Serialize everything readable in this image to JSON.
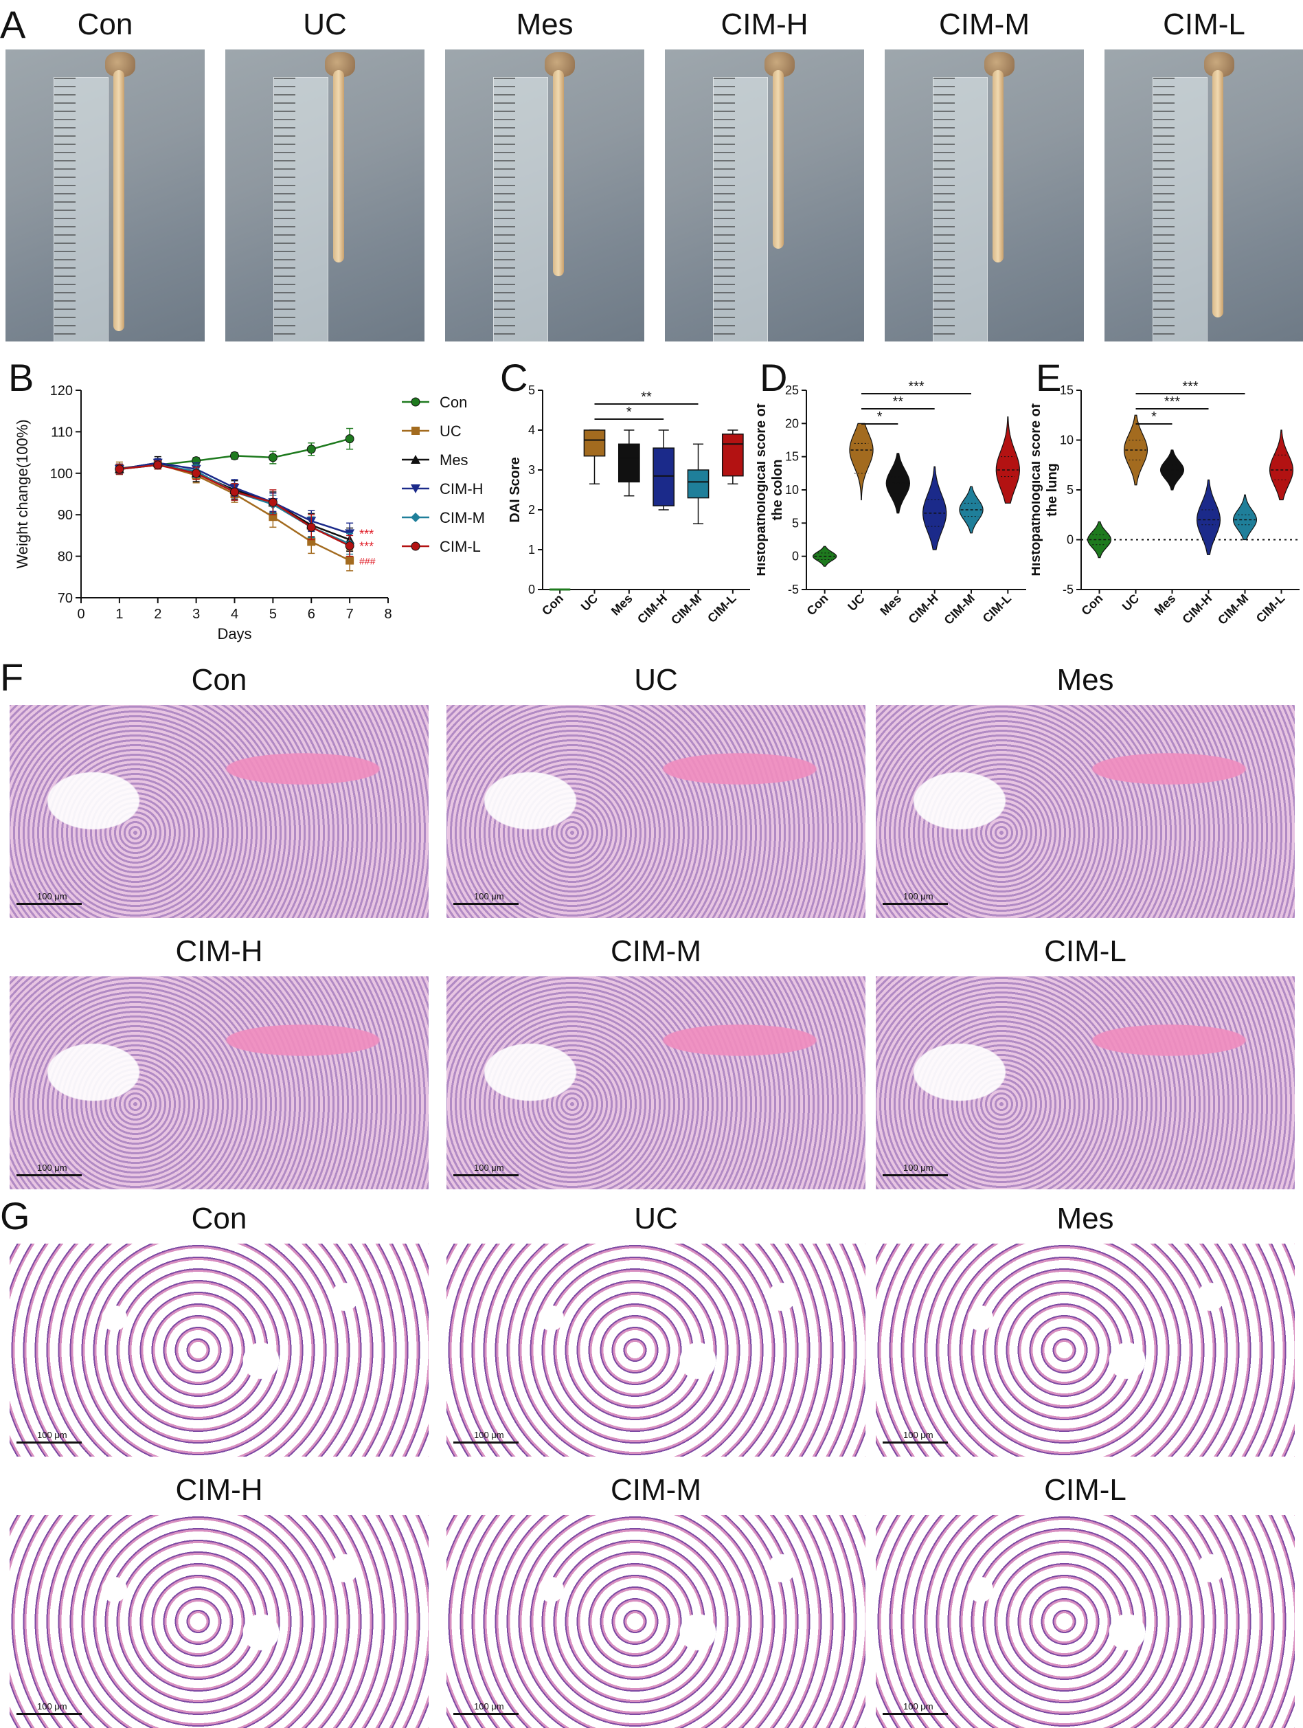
{
  "panels": {
    "A": "A",
    "B": "B",
    "C": "C",
    "D": "D",
    "E": "E",
    "F": "F",
    "G": "G"
  },
  "groups": [
    "Con",
    "UC",
    "Mes",
    "CIM-H",
    "CIM-M",
    "CIM-L"
  ],
  "scale_bar_label": "100 μm",
  "colors": {
    "Con": "#1e7a1e",
    "UC": "#a36b1f",
    "Mes": "#111111",
    "CIM-H": "#1b2a8a",
    "CIM-M": "#1f7f9a",
    "CIM-L": "#b31212",
    "sig_red": "#e0202a"
  },
  "chart_data": [
    {
      "panel": "B",
      "type": "line",
      "xlabel": "Days",
      "ylabel": "Weight change(100%)",
      "xlim": [
        0,
        8
      ],
      "ylim": [
        70,
        120
      ],
      "xticks": [
        "0",
        "1",
        "2",
        "3",
        "4",
        "5",
        "6",
        "7",
        "8"
      ],
      "yticks": [
        "70",
        "80",
        "90",
        "100",
        "110",
        "120"
      ],
      "legend_position": "right",
      "x": [
        1,
        2,
        3,
        4,
        5,
        6,
        7
      ],
      "series": [
        {
          "name": "Con",
          "marker": "circle",
          "values": [
            101.0,
            102.0,
            103.0,
            104.2,
            103.8,
            105.8,
            108.3
          ],
          "err": [
            1.2,
            1.0,
            0.8,
            0.8,
            1.5,
            1.5,
            2.5
          ]
        },
        {
          "name": "UC",
          "marker": "square",
          "values": [
            101.2,
            102.2,
            99.5,
            95.0,
            89.5,
            83.5,
            79.0
          ],
          "err": [
            1.5,
            1.2,
            1.8,
            2.0,
            2.5,
            2.8,
            2.5
          ]
        },
        {
          "name": "Mes",
          "marker": "triangle",
          "values": [
            101.0,
            102.5,
            100.0,
            96.0,
            93.0,
            87.5,
            84.0
          ],
          "err": [
            1.2,
            1.5,
            2.0,
            2.2,
            2.5,
            2.8,
            2.8
          ]
        },
        {
          "name": "CIM-H",
          "marker": "tri-down",
          "values": [
            101.0,
            102.5,
            101.0,
            96.5,
            93.0,
            88.5,
            85.5
          ],
          "err": [
            1.2,
            1.0,
            1.5,
            2.0,
            2.2,
            2.5,
            2.5
          ]
        },
        {
          "name": "CIM-M",
          "marker": "diamond",
          "values": [
            101.0,
            102.0,
            100.5,
            95.5,
            92.5,
            87.0,
            83.0
          ],
          "err": [
            1.2,
            1.0,
            1.5,
            2.0,
            2.2,
            2.5,
            2.5
          ]
        },
        {
          "name": "CIM-L",
          "marker": "circle",
          "values": [
            101.0,
            102.0,
            100.0,
            95.5,
            93.0,
            87.0,
            82.5
          ],
          "err": [
            1.2,
            1.0,
            1.5,
            2.0,
            3.0,
            3.0,
            2.5
          ]
        }
      ],
      "annotations": [
        "***",
        "***",
        "###"
      ]
    },
    {
      "panel": "C",
      "type": "box",
      "ylabel": "DAI Score",
      "ylim": [
        0,
        5
      ],
      "yticks": [
        "0",
        "1",
        "2",
        "3",
        "4",
        "5"
      ],
      "categories": [
        "Con",
        "UC",
        "Mes",
        "CIM-H",
        "CIM-M",
        "CIM-L"
      ],
      "boxes": [
        {
          "min": 0.0,
          "q1": 0.0,
          "median": 0.0,
          "q3": 0.0,
          "max": 0.0
        },
        {
          "min": 2.65,
          "q1": 3.35,
          "median": 3.75,
          "q3": 4.0,
          "max": 4.0
        },
        {
          "min": 2.35,
          "q1": 2.7,
          "median": 3.3,
          "q3": 3.65,
          "max": 4.0
        },
        {
          "min": 2.0,
          "q1": 2.1,
          "median": 2.85,
          "q3": 3.55,
          "max": 4.0
        },
        {
          "min": 1.65,
          "q1": 2.3,
          "median": 2.7,
          "q3": 3.0,
          "max": 3.65
        },
        {
          "min": 2.65,
          "q1": 2.85,
          "median": 3.65,
          "q3": 3.9,
          "max": 4.0
        }
      ],
      "significance": [
        {
          "from": "UC",
          "to": "CIM-H",
          "label": "*"
        },
        {
          "from": "UC",
          "to": "CIM-M",
          "label": "**"
        }
      ]
    },
    {
      "panel": "D",
      "type": "violin",
      "ylabel": "Histopathological score of the colon",
      "ylim": [
        -5,
        25
      ],
      "yticks": [
        "-5",
        "0",
        "5",
        "10",
        "15",
        "20",
        "25"
      ],
      "categories": [
        "Con",
        "UC",
        "Mes",
        "CIM-H",
        "CIM-M",
        "CIM-L"
      ],
      "violins": [
        {
          "min": -1.5,
          "max": 1.5,
          "median": 0.0,
          "q1": -0.5,
          "q3": 0.5
        },
        {
          "min": 8.5,
          "max": 20.0,
          "median": 16.0,
          "q1": 12.5,
          "q3": 17.0
        },
        {
          "min": 6.5,
          "max": 15.5,
          "median": 11.0,
          "q1": 9.5,
          "q3": 12.0
        },
        {
          "min": 1.0,
          "max": 13.5,
          "median": 6.5,
          "q1": 4.5,
          "q3": 8.5
        },
        {
          "min": 3.5,
          "max": 10.5,
          "median": 7.0,
          "q1": 6.0,
          "q3": 8.0
        },
        {
          "min": 8.0,
          "max": 21.0,
          "median": 13.0,
          "q1": 12.0,
          "q3": 15.0
        }
      ],
      "significance": [
        {
          "from": "UC",
          "to": "Mes",
          "label": "*"
        },
        {
          "from": "UC",
          "to": "CIM-H",
          "label": "**"
        },
        {
          "from": "UC",
          "to": "CIM-M",
          "label": "***"
        }
      ]
    },
    {
      "panel": "E",
      "type": "violin",
      "ylabel": "Histopathological score of the lung",
      "ylim": [
        -5,
        15
      ],
      "yticks": [
        "-5",
        "0",
        "5",
        "10",
        "15"
      ],
      "reference_line": 0,
      "categories": [
        "Con",
        "UC",
        "Mes",
        "CIM-H",
        "CIM-M",
        "CIM-L"
      ],
      "violins": [
        {
          "min": -1.8,
          "max": 1.8,
          "median": 0.0,
          "q1": -0.5,
          "q3": 0.5
        },
        {
          "min": 5.5,
          "max": 12.5,
          "median": 9.0,
          "q1": 8.0,
          "q3": 10.0
        },
        {
          "min": 5.0,
          "max": 9.0,
          "median": 7.0,
          "q1": 6.5,
          "q3": 7.5
        },
        {
          "min": -1.5,
          "max": 6.0,
          "median": 2.0,
          "q1": 1.5,
          "q3": 3.0
        },
        {
          "min": 0.0,
          "max": 4.5,
          "median": 2.0,
          "q1": 1.5,
          "q3": 2.5
        },
        {
          "min": 4.0,
          "max": 11.0,
          "median": 7.0,
          "q1": 6.0,
          "q3": 8.5
        }
      ],
      "significance": [
        {
          "from": "UC",
          "to": "Mes",
          "label": "*"
        },
        {
          "from": "UC",
          "to": "CIM-H",
          "label": "***"
        },
        {
          "from": "UC",
          "to": "CIM-M",
          "label": "***"
        }
      ]
    }
  ]
}
